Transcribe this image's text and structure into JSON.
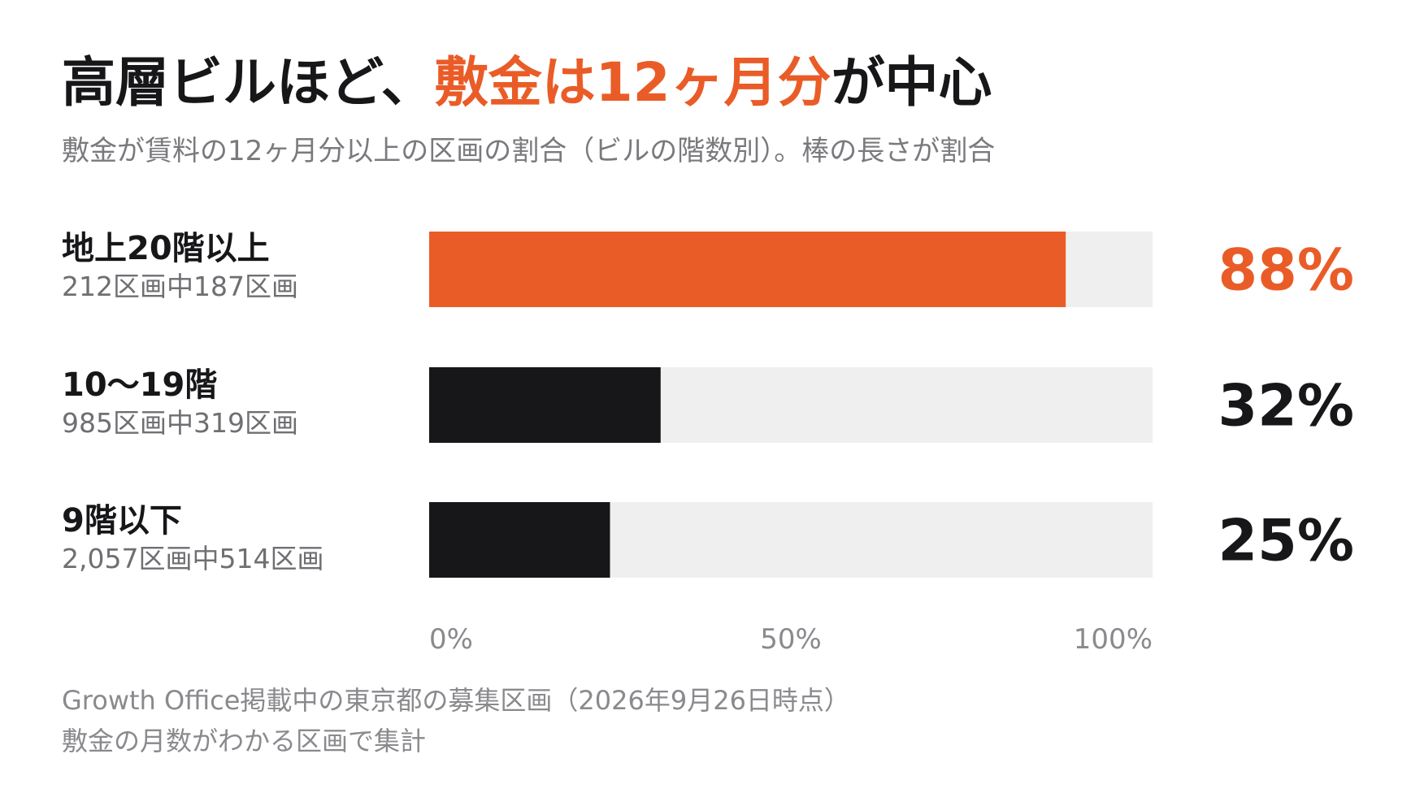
{
  "title": {
    "prefix": "高層ビルほど、",
    "highlight": "敷金は12ヶ月分",
    "suffix": "が中心"
  },
  "subtitle": "敷金が賃料の12ヶ月分以上の区画の割合（ビルの階数別）。棒の長さが割合",
  "colors": {
    "accent": "#ea5c27",
    "bar": "#17171a",
    "track": "#efefef",
    "axis_text": "#8a8a8e"
  },
  "chart_data": {
    "type": "bar",
    "orientation": "horizontal",
    "categories": [
      "地上20階以上",
      "10〜19階",
      "9階以下"
    ],
    "details": [
      "212区画中187区画",
      "985区画中319区画",
      "2,057区画中514区画"
    ],
    "values": [
      88,
      32,
      25
    ],
    "value_labels": [
      "88%",
      "32%",
      "25%"
    ],
    "highlight_index": 0,
    "xlim": [
      0,
      100
    ],
    "x_ticks": [
      "0%",
      "50%",
      "100%"
    ],
    "grid": false
  },
  "footnote": {
    "line1": "Growth Office掲載中の東京都の募集区画（2026年9月26日時点）",
    "line2": "敷金の月数がわかる区画で集計"
  }
}
